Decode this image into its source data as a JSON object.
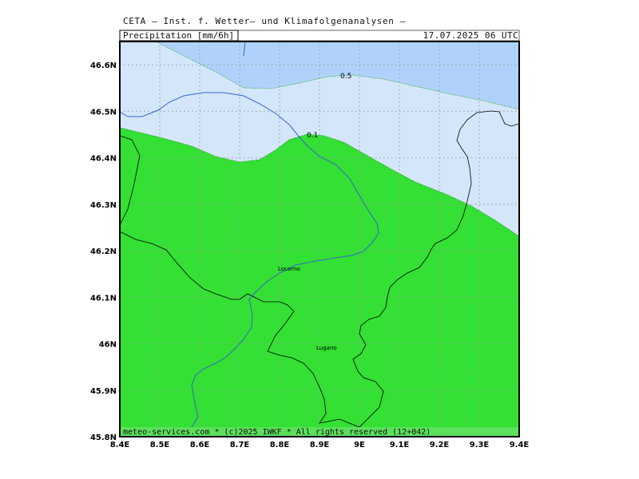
{
  "header": {
    "org_line": "CETA — Inst. f. Wetter— und Klimafolgenanalysen —",
    "variable": "Precipitation [mm/6h]",
    "datetime": "17.07.2025 06 UTC"
  },
  "map": {
    "lon_range": [
      8.4,
      9.4
    ],
    "lat_range": [
      45.8,
      46.65
    ],
    "lon_ticks": [
      "8.4E",
      "8.5E",
      "8.6E",
      "8.7E",
      "8.8E",
      "8.9E",
      "9E",
      "9.1E",
      "9.2E",
      "9.3E",
      "9.4E"
    ],
    "lat_ticks": [
      "45.8N",
      "45.9N",
      "46N",
      "46.1N",
      "46.2N",
      "46.3N",
      "46.4N",
      "46.5N",
      "46.6N"
    ],
    "grid": true,
    "contour_labels": [
      "0.5",
      "0.1"
    ],
    "cities": [
      "Locarno",
      "Lugano"
    ],
    "colors": {
      "band_low": "#33e033",
      "band_mid": "#d4e6fa",
      "band_high": "#b0d2fa",
      "frame": "#000000",
      "river": "#3366cc",
      "border": "#000000"
    }
  },
  "footer": {
    "copyright": "meteo-services.com * (c)2025 IWKF * All rights reserved (12+042)"
  }
}
